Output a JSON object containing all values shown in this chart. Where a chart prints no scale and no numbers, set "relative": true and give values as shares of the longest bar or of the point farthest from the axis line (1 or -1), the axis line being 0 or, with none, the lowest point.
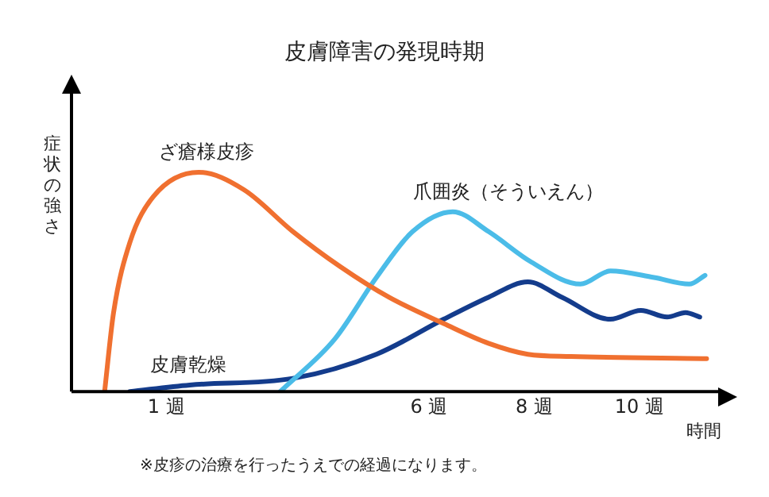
{
  "chart_data": {
    "type": "line",
    "title": "皮膚障害の発現時期",
    "ylabel": "症状の強さ",
    "xlabel": "時間",
    "annotations": [
      "※皮疹の治療を行ったうえでの経過になります。"
    ],
    "relative": true,
    "marker": "none",
    "legend": false,
    "xlim": [
      -0.8,
      11.5
    ],
    "xticks": [
      {
        "value": 1,
        "label": "1 週"
      },
      {
        "value": 6,
        "label": "6 週"
      },
      {
        "value": 8,
        "label": "8 週"
      },
      {
        "value": 10,
        "label": "10 週"
      }
    ],
    "series": [
      {
        "name": "ざ瘡様皮疹",
        "color": "#f07030",
        "x": [
          -0.17,
          0.0,
          0.31,
          0.76,
          1.62,
          2.48,
          3.41,
          4.31,
          5.24,
          6.28,
          7.13,
          7.88,
          8.7,
          11.28
        ],
        "values": [
          0,
          0.36,
          0.68,
          0.89,
          1,
          0.92,
          0.73,
          0.57,
          0.43,
          0.31,
          0.22,
          0.17,
          0.16,
          0.15
        ]
      },
      {
        "name": "爪囲炎（そういえん）",
        "color": "#4bbce8",
        "x": [
          3.17,
          4.21,
          5.0,
          5.69,
          6.45,
          7.13,
          7.95,
          8.88,
          9.45,
          10.28,
          10.95,
          11.25
        ],
        "values": [
          0,
          0.24,
          0.52,
          0.73,
          0.82,
          0.73,
          0.59,
          0.49,
          0.55,
          0.52,
          0.49,
          0.53
        ]
      },
      {
        "name": "皮膚乾燥",
        "color": "#143c8c",
        "x": [
          0.31,
          1.45,
          3.41,
          5.0,
          6.28,
          7.13,
          7.88,
          8.53,
          9.45,
          10.03,
          10.53,
          10.88,
          11.15
        ],
        "values": [
          0,
          0.03,
          0.06,
          0.17,
          0.33,
          0.43,
          0.5,
          0.43,
          0.33,
          0.37,
          0.34,
          0.36,
          0.34
        ]
      }
    ]
  }
}
